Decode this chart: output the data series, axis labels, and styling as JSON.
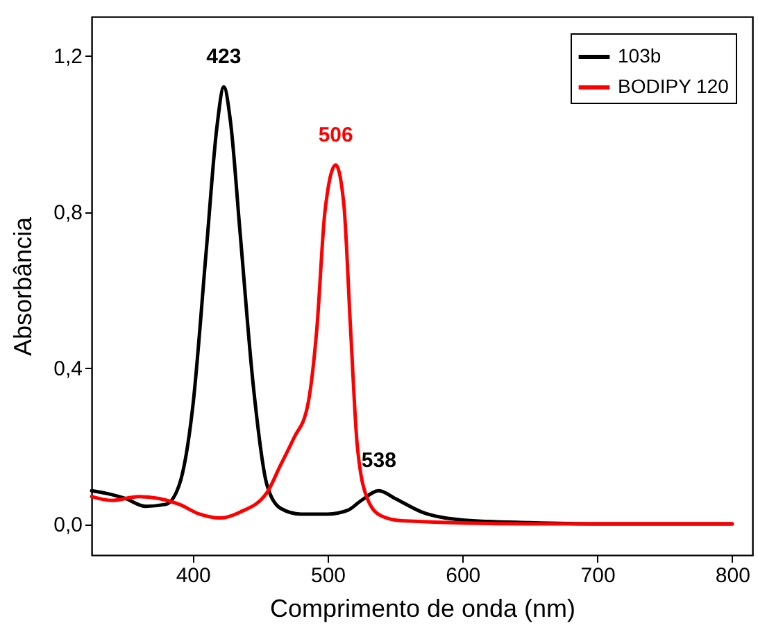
{
  "chart_data": {
    "type": "line",
    "xlabel": "Comprimento de onda (nm)",
    "ylabel": "Absorbância",
    "xlim": [
      325,
      815
    ],
    "xticks": [
      400,
      500,
      600,
      700,
      800
    ],
    "ylim": [
      -0.08,
      1.3
    ],
    "yticks": [
      {
        "value": 0,
        "label": "0,0"
      },
      {
        "value": 0.4,
        "label": "0,4"
      },
      {
        "value": 0.8,
        "label": "0,8"
      },
      {
        "value": 1.2,
        "label": "1,2"
      }
    ],
    "legend": "top right",
    "line_style": "solid",
    "grid": false,
    "series": [
      {
        "name": "103b",
        "color": "#000000",
        "x": [
          325,
          340,
          350,
          365,
          380,
          390,
          400,
          410,
          418,
          423,
          428,
          435,
          445,
          455,
          465,
          480,
          500,
          515,
          525,
          538,
          550,
          570,
          600,
          650,
          700,
          800
        ],
        "values": [
          0.085,
          0.075,
          0.065,
          0.045,
          0.05,
          0.1,
          0.3,
          0.7,
          1.02,
          1.12,
          1.03,
          0.75,
          0.35,
          0.1,
          0.04,
          0.025,
          0.025,
          0.035,
          0.06,
          0.085,
          0.065,
          0.03,
          0.01,
          0.003,
          0,
          0
        ]
      },
      {
        "name": "BODIPY 120",
        "color": "#ff0000",
        "x": [
          325,
          340,
          360,
          375,
          390,
          405,
          420,
          435,
          455,
          465,
          475,
          485,
          492,
          498,
          506,
          512,
          517,
          522,
          530,
          540,
          555,
          650,
          800
        ],
        "values": [
          0.07,
          0.06,
          0.07,
          0.065,
          0.05,
          0.025,
          0.015,
          0.03,
          0.08,
          0.15,
          0.22,
          0.3,
          0.5,
          0.8,
          0.92,
          0.82,
          0.5,
          0.2,
          0.06,
          0.02,
          0.008,
          0,
          0
        ]
      }
    ],
    "annotations": [
      {
        "text": "423",
        "x": 423,
        "y": 1.12
      },
      {
        "text": "506",
        "x": 506,
        "y": 0.92
      },
      {
        "text": "538",
        "x": 538,
        "y": 0.085
      }
    ]
  }
}
